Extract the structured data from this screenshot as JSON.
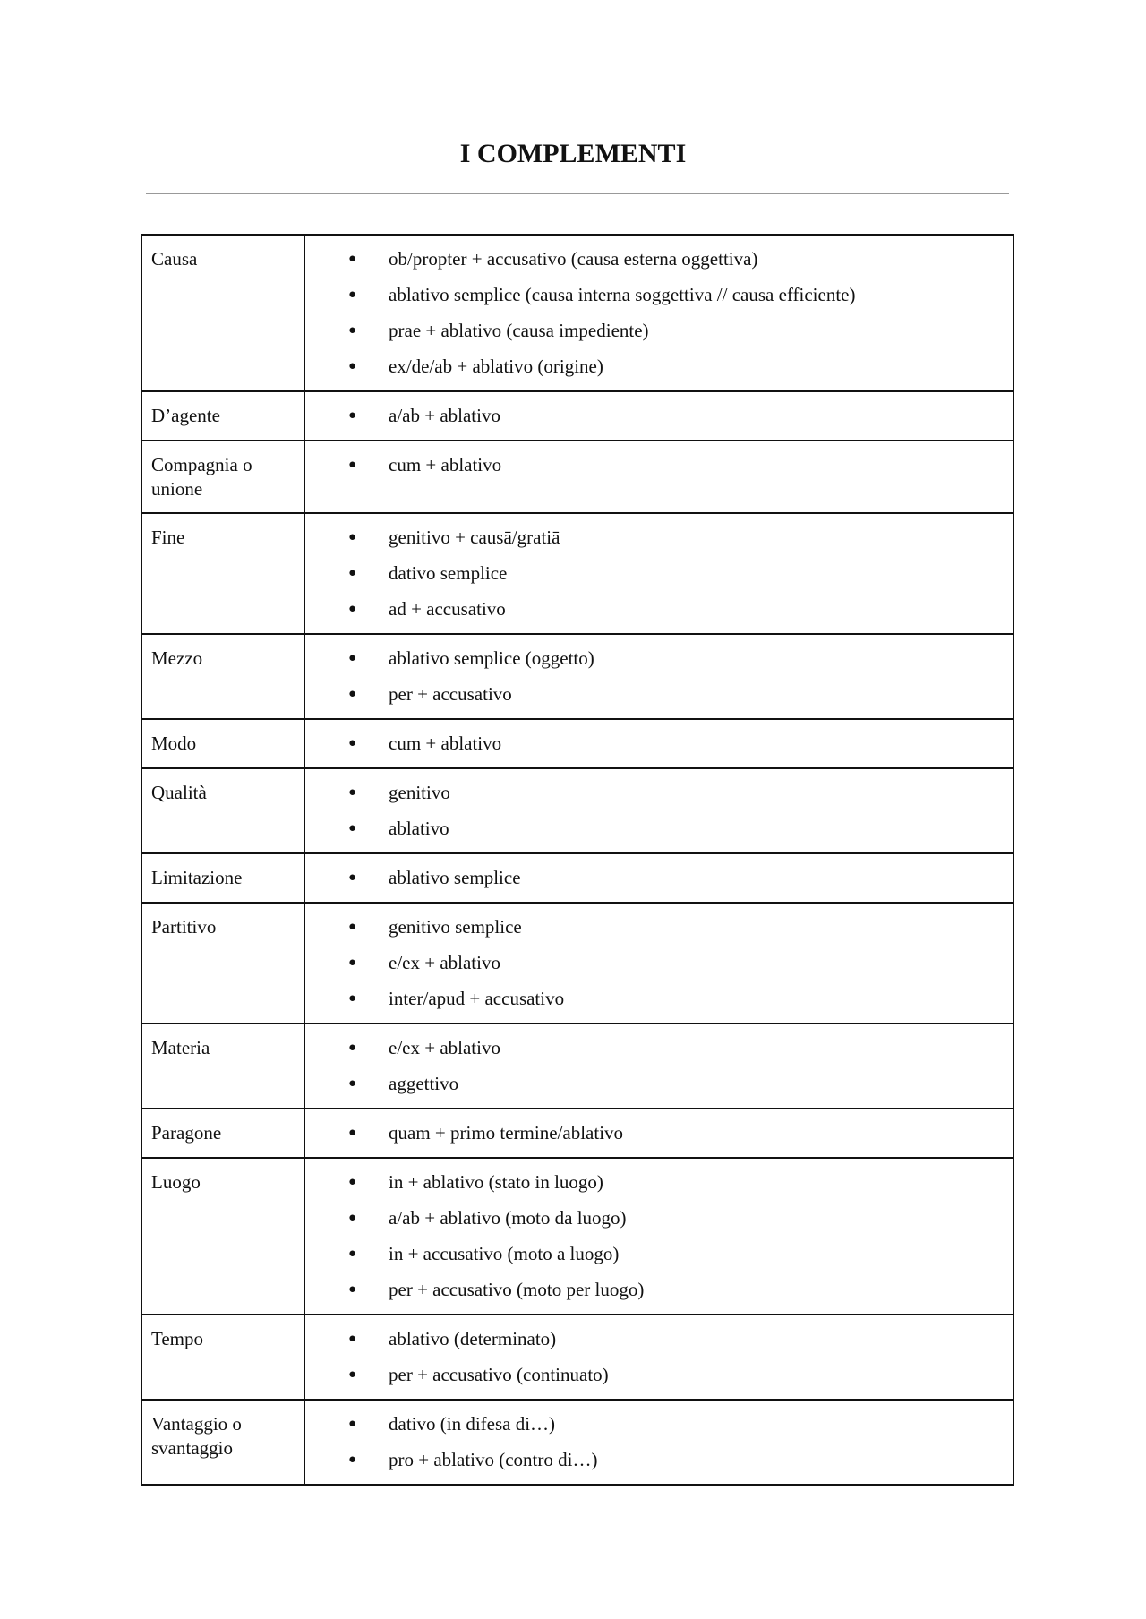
{
  "title": "I COMPLEMENTI",
  "rows": [
    {
      "label": "Causa",
      "items": [
        "ob/propter + accusativo (causa esterna oggettiva)",
        "ablativo semplice (causa interna soggettiva // causa efficiente)",
        "prae + ablativo  (causa impediente)",
        "ex/de/ab + ablativo (origine)"
      ]
    },
    {
      "label": "D’agente",
      "items": [
        "a/ab + ablativo"
      ]
    },
    {
      "label": "Compagnia o unione",
      "items": [
        "cum + ablativo"
      ]
    },
    {
      "label": "Fine",
      "items": [
        "genitivo + causā/gratiā",
        "dativo semplice",
        "ad + accusativo"
      ]
    },
    {
      "label": "Mezzo",
      "items": [
        "ablativo semplice (oggetto)",
        "per + accusativo"
      ]
    },
    {
      "label": "Modo",
      "items": [
        "cum + ablativo"
      ]
    },
    {
      "label": "Qualità",
      "items": [
        "genitivo",
        "ablativo"
      ]
    },
    {
      "label": "Limitazione",
      "items": [
        "ablativo semplice"
      ]
    },
    {
      "label": "Partitivo",
      "items": [
        "genitivo semplice",
        "e/ex + ablativo",
        "inter/apud + accusativo"
      ]
    },
    {
      "label": "Materia",
      "items": [
        "e/ex + ablativo",
        "aggettivo"
      ]
    },
    {
      "label": "Paragone",
      "items": [
        "quam + primo termine/ablativo"
      ]
    },
    {
      "label": "Luogo",
      "items": [
        "in + ablativo (stato in luogo)",
        "a/ab + ablativo (moto da luogo)",
        "in + accusativo (moto a luogo)",
        "per + accusativo (moto per luogo)"
      ]
    },
    {
      "label": "Tempo",
      "items": [
        "ablativo (determinato)",
        "per + accusativo (continuato)"
      ]
    },
    {
      "label": "Vantaggio o svantaggio",
      "items": [
        "dativo (in difesa di…)",
        "pro + ablativo (contro di…)"
      ]
    }
  ]
}
